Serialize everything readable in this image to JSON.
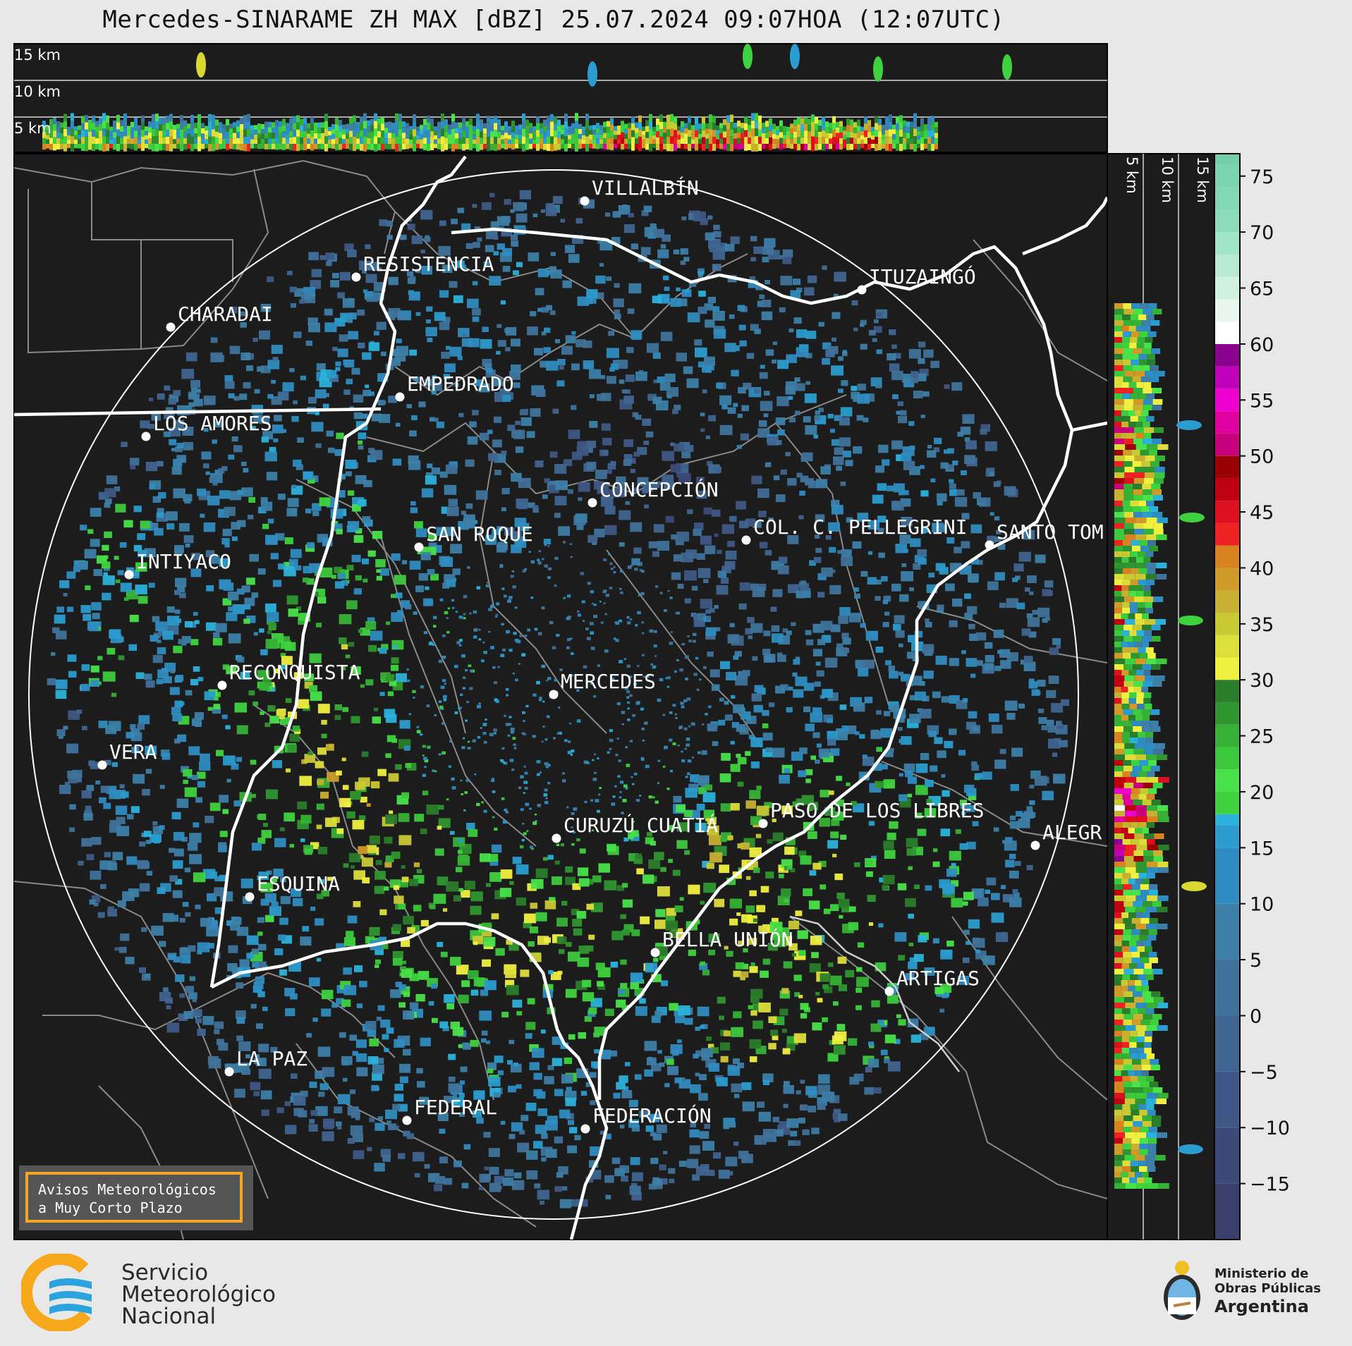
{
  "title": "Mercedes-SINARAME ZH MAX [dBZ] 25.07.2024 09:07HOA (12:07UTC)",
  "top_panel_labels": [
    "15 km",
    "10 km",
    "5 km"
  ],
  "side_panel_labels": [
    "5 km",
    "10 km",
    "15 km"
  ],
  "colorbar": {
    "unit": "dBZ",
    "ticks": [
      "75",
      "70",
      "65",
      "60",
      "55",
      "50",
      "45",
      "40",
      "35",
      "30",
      "25",
      "20",
      "15",
      "10",
      "5",
      "0",
      "−5",
      "−10",
      "−15"
    ],
    "range": [
      -20,
      77
    ]
  },
  "cities": [
    {
      "name": "VILLALBÍN"
    },
    {
      "name": "RESISTENCIA"
    },
    {
      "name": "CHARADAI"
    },
    {
      "name": "ITUZAINGÓ"
    },
    {
      "name": "EMPEDRADO"
    },
    {
      "name": "LOS AMORES"
    },
    {
      "name": "CONCEPCIÓN"
    },
    {
      "name": "SAN ROQUE"
    },
    {
      "name": "COL. C. PELLEGRINI"
    },
    {
      "name": "SANTO TOM"
    },
    {
      "name": "INTIYACO"
    },
    {
      "name": "RECONQUISTA"
    },
    {
      "name": "MERCEDES"
    },
    {
      "name": "VERA"
    },
    {
      "name": "CURUZÚ CUATIÁ"
    },
    {
      "name": "PASO DE LOS LIBRES"
    },
    {
      "name": "ALEGR"
    },
    {
      "name": "ESQUINA"
    },
    {
      "name": "BELLA UNIÓN"
    },
    {
      "name": "ARTIGAS"
    },
    {
      "name": "LA PAZ"
    },
    {
      "name": "FEDERAL"
    },
    {
      "name": "FEDERACIÓN"
    }
  ],
  "notice": {
    "line1": "Avisos Meteorológicos",
    "line2": "a Muy Corto Plazo"
  },
  "footer": {
    "smn": [
      "Servicio",
      "Meteorológico",
      "Nacional"
    ],
    "ministry": [
      "Ministerio de",
      "Obras Públicas",
      "Argentina"
    ]
  }
}
